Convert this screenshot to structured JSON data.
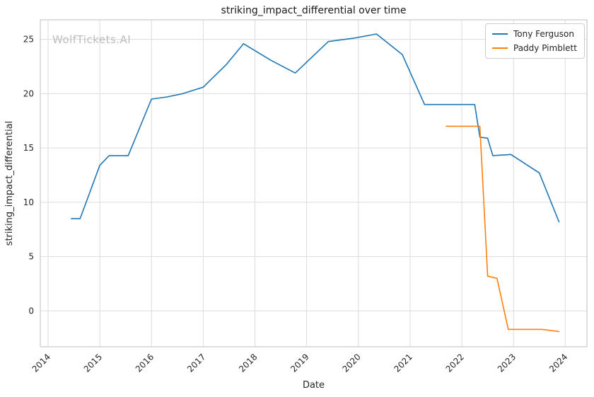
{
  "watermark": "WolfTickets.AI",
  "chart_data": {
    "type": "line",
    "title": "striking_impact_differential over time",
    "xlabel": "Date",
    "ylabel": "striking_impact_differential",
    "xlim": [
      2013.85,
      2024.42
    ],
    "ylim": [
      -3.3,
      26.8
    ],
    "x_ticks": [
      2014,
      2015,
      2016,
      2017,
      2018,
      2019,
      2020,
      2021,
      2022,
      2023,
      2024
    ],
    "y_ticks": [
      0,
      5,
      10,
      15,
      20,
      25
    ],
    "grid": true,
    "grid_color": "#dcdcdc",
    "axis_color": "#c9c9c9",
    "tick_label_color": "#262626",
    "legend_position": "top-right",
    "series": [
      {
        "name": "Tony Ferguson",
        "color": "#1f77b4",
        "points": [
          [
            2014.45,
            8.5
          ],
          [
            2014.62,
            8.5
          ],
          [
            2015.0,
            13.4
          ],
          [
            2015.18,
            14.3
          ],
          [
            2015.55,
            14.3
          ],
          [
            2016.0,
            19.5
          ],
          [
            2016.3,
            19.7
          ],
          [
            2016.6,
            20.0
          ],
          [
            2017.0,
            20.6
          ],
          [
            2017.45,
            22.7
          ],
          [
            2017.78,
            24.6
          ],
          [
            2018.3,
            23.1
          ],
          [
            2018.78,
            21.9
          ],
          [
            2019.42,
            24.8
          ],
          [
            2019.9,
            25.1
          ],
          [
            2020.35,
            25.5
          ],
          [
            2020.85,
            23.6
          ],
          [
            2021.28,
            19.0
          ],
          [
            2022.25,
            19.0
          ],
          [
            2022.35,
            16.0
          ],
          [
            2022.5,
            15.9
          ],
          [
            2022.6,
            14.3
          ],
          [
            2022.95,
            14.4
          ],
          [
            2023.5,
            12.7
          ],
          [
            2023.88,
            8.2
          ]
        ]
      },
      {
        "name": "Paddy Pimblett",
        "color": "#ff7f0e",
        "points": [
          [
            2021.7,
            17.0
          ],
          [
            2022.35,
            17.0
          ],
          [
            2022.5,
            3.2
          ],
          [
            2022.68,
            3.0
          ],
          [
            2022.9,
            -1.7
          ],
          [
            2023.55,
            -1.7
          ],
          [
            2023.88,
            -1.9
          ]
        ]
      }
    ]
  }
}
